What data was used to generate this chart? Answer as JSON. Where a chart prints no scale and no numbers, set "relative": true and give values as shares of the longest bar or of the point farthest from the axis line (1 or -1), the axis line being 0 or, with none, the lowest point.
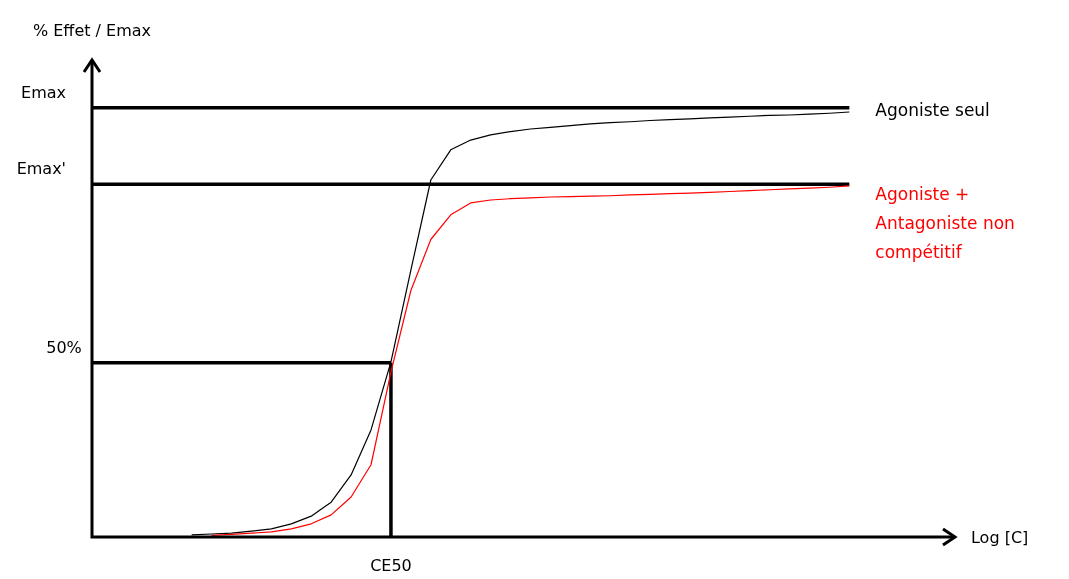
{
  "chart_data": {
    "type": "line",
    "relative": true,
    "xlabel": "Log [C]",
    "ylabel": "% Effet / Emax",
    "categories": [
      null,
      null,
      null,
      null,
      null,
      null,
      null,
      null,
      null,
      null,
      null,
      null,
      null,
      null,
      null,
      null,
      null,
      null,
      null,
      null,
      null,
      null,
      null,
      null,
      null,
      null,
      null,
      null,
      null,
      null,
      null,
      null,
      null,
      null,
      null,
      null,
      null,
      null,
      null,
      null,
      null,
      null,
      null,
      null
    ],
    "series": [
      {
        "name": "Agoniste seul",
        "color": "#000000",
        "values": [
          null,
          null,
          null,
          null,
          null,
          0.005,
          0.007,
          0.009,
          0.014,
          0.019,
          0.031,
          0.049,
          0.082,
          0.146,
          0.252,
          0.412,
          0.628,
          0.84,
          0.911,
          0.934,
          0.946,
          0.954,
          0.96,
          0.964,
          0.968,
          0.972,
          0.975,
          0.977,
          0.98,
          0.982,
          0.984,
          0.986,
          0.988,
          0.99,
          0.992,
          0.993,
          0.995,
          0.997,
          1,
          null,
          null,
          null,
          null,
          null
        ]
      },
      {
        "name": "Agoniste + Antagoniste non compétitif",
        "color": "#ff0000",
        "values": [
          null,
          null,
          null,
          null,
          null,
          null,
          0.004,
          0.006,
          0.009,
          0.012,
          0.019,
          0.031,
          0.052,
          0.094,
          0.17,
          0.388,
          0.58,
          0.7,
          0.758,
          0.786,
          0.793,
          0.796,
          0.798,
          0.8,
          0.801,
          0.802,
          0.803,
          0.805,
          0.806,
          0.808,
          0.809,
          0.811,
          0.813,
          0.815,
          0.817,
          0.819,
          0.821,
          0.823,
          0.826,
          null,
          null,
          null,
          null,
          null
        ]
      }
    ],
    "ref_lines": [
      {
        "axis": "y",
        "value": 1.01,
        "label": "Emax",
        "color": "#000000"
      },
      {
        "axis": "y",
        "value": 0.83,
        "label": "Emax'",
        "color": "#000000"
      },
      {
        "axis": "y",
        "value": 0.41,
        "color": "#000000"
      }
    ],
    "annotations": [
      "50%",
      "CE50"
    ],
    "marker": "none",
    "line_style": "solid",
    "grid": false
  }
}
